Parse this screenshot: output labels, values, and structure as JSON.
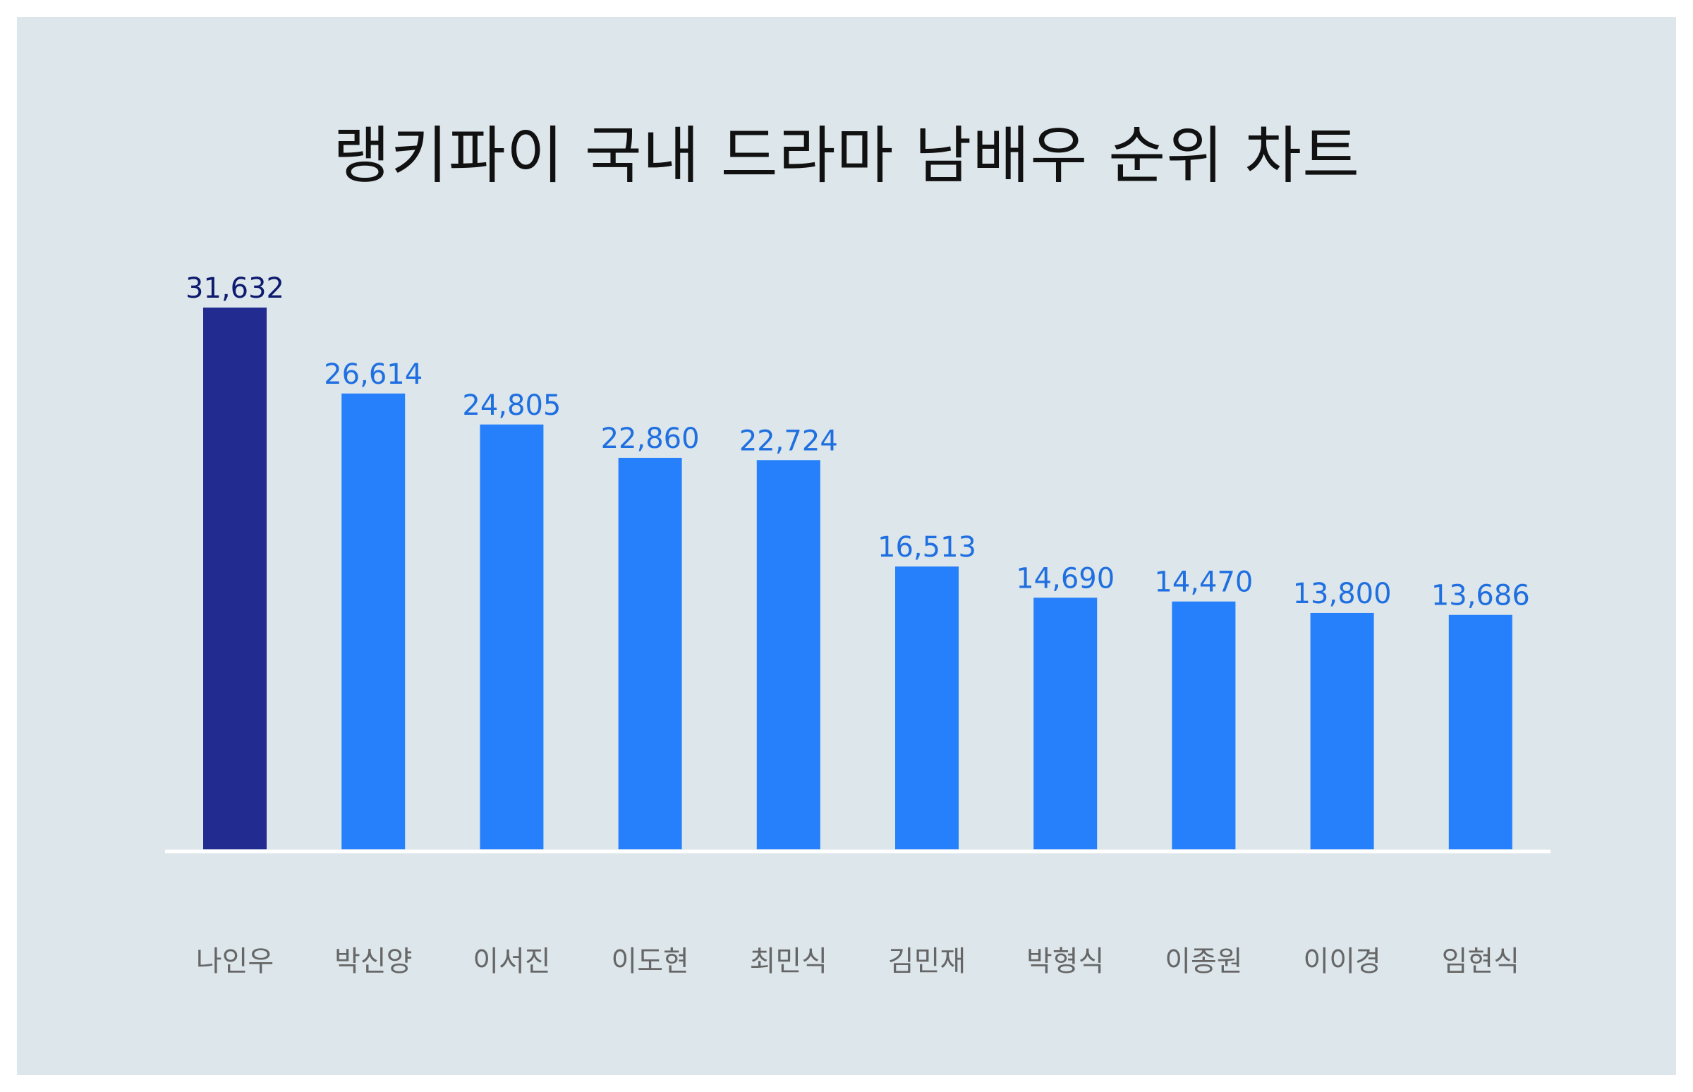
{
  "chart_data": {
    "type": "bar",
    "title": "랭키파이 국내 드라마 남배우 순위 차트",
    "categories": [
      "나인우",
      "박신양",
      "이서진",
      "이도현",
      "최민식",
      "김민재",
      "박형식",
      "이종원",
      "이이경",
      "임현식"
    ],
    "values": [
      31632,
      26614,
      24805,
      22860,
      22724,
      16513,
      14690,
      14470,
      13800,
      13686
    ],
    "value_labels": [
      "31,632",
      "26,614",
      "24,805",
      "22,860",
      "22,724",
      "16,513",
      "14,690",
      "14,470",
      "13,800",
      "13,686"
    ],
    "xlabel": "",
    "ylabel": "",
    "ylim": [
      0,
      31632
    ],
    "grid": false,
    "legend": "none",
    "colors": {
      "highlight_bar": "#222b8f",
      "highlight_label": "#0d1a6e",
      "bar": "#2680fc",
      "label": "#1f6fe0",
      "background": "#dce6eb",
      "baseline": "#ffffff"
    }
  }
}
